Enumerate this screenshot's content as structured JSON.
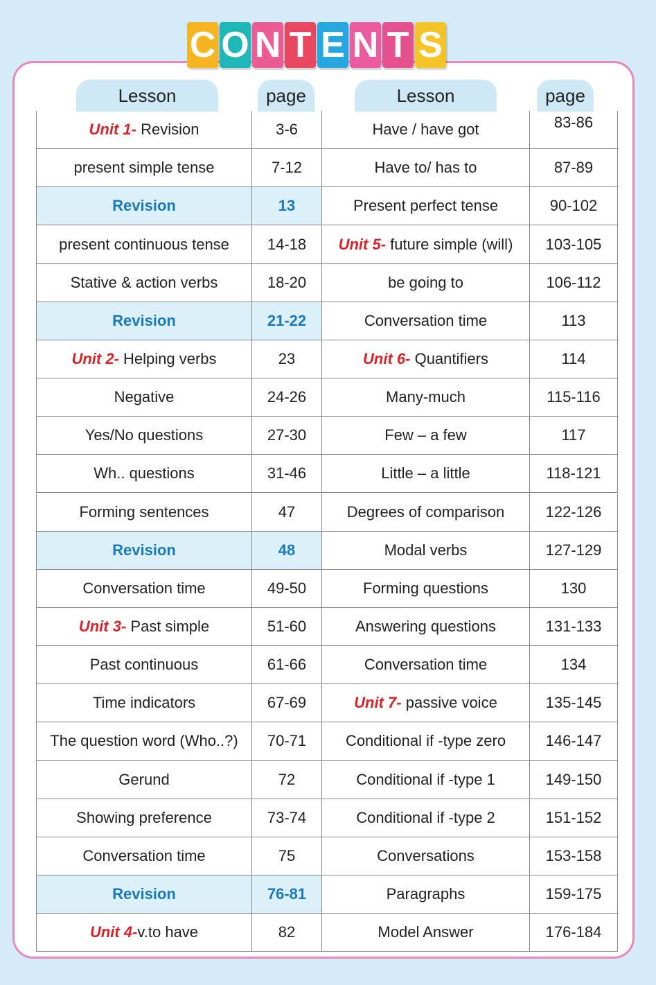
{
  "title_letters": [
    "C",
    "O",
    "N",
    "T",
    "E",
    "N",
    "T",
    "S"
  ],
  "table": {
    "headers": [
      "Lesson",
      "page",
      "Lesson",
      "page"
    ],
    "rows": [
      [
        {
          "unit": "Unit 1- ",
          "lesson": "Revision",
          "page": "3-6"
        },
        {
          "lesson": "Have / have got",
          "page": "83-86"
        }
      ],
      [
        {
          "lesson": "present simple tense",
          "page": "7-12"
        },
        {
          "lesson": "Have to/ has to",
          "page": "87-89"
        }
      ],
      [
        {
          "lesson": "Revision",
          "page": "13",
          "highlight": true
        },
        {
          "lesson": "Present perfect tense",
          "page": "90-102"
        }
      ],
      [
        {
          "lesson": "present continuous tense",
          "page": "14-18"
        },
        {
          "unit": "Unit 5- ",
          "lesson": "future simple (will)",
          "page": "103-105"
        }
      ],
      [
        {
          "lesson": "Stative & action verbs",
          "page": "18-20"
        },
        {
          "lesson": "be going to",
          "page": "106-112"
        }
      ],
      [
        {
          "lesson": "Revision",
          "page": "21-22",
          "highlight": true
        },
        {
          "lesson": "Conversation time",
          "page": "113"
        }
      ],
      [
        {
          "unit": "Unit 2- ",
          "lesson": "Helping verbs",
          "page": "23"
        },
        {
          "unit": "Unit 6- ",
          "lesson": "Quantifiers",
          "page": "114"
        }
      ],
      [
        {
          "lesson": "Negative",
          "page": "24-26"
        },
        {
          "lesson": "Many-much",
          "page": "115-116"
        }
      ],
      [
        {
          "lesson": "Yes/No questions",
          "page": "27-30"
        },
        {
          "lesson": "Few – a few",
          "page": "117"
        }
      ],
      [
        {
          "lesson": "Wh.. questions",
          "page": "31-46"
        },
        {
          "lesson": "Little – a little",
          "page": "118-121"
        }
      ],
      [
        {
          "lesson": "Forming sentences",
          "page": "47"
        },
        {
          "lesson": "Degrees of comparison",
          "page": "122-126"
        }
      ],
      [
        {
          "lesson": "Revision",
          "page": "48",
          "highlight": true
        },
        {
          "lesson": "Modal verbs",
          "page": "127-129"
        }
      ],
      [
        {
          "lesson": "Conversation time",
          "page": "49-50"
        },
        {
          "lesson": "Forming questions",
          "page": "130"
        }
      ],
      [
        {
          "unit": "Unit 3- ",
          "lesson": "Past simple",
          "page": "51-60"
        },
        {
          "lesson": "Answering questions",
          "page": "131-133"
        }
      ],
      [
        {
          "lesson": "Past continuous",
          "page": "61-66"
        },
        {
          "lesson": "Conversation time",
          "page": "134"
        }
      ],
      [
        {
          "lesson": "Time indicators",
          "page": "67-69"
        },
        {
          "unit": "Unit 7- ",
          "lesson": "passive voice",
          "page": "135-145"
        }
      ],
      [
        {
          "lesson": "The question word (Who..?)",
          "page": "70-71"
        },
        {
          "lesson": "Conditional if -type zero",
          "page": "146-147"
        }
      ],
      [
        {
          "lesson": "Gerund",
          "page": "72"
        },
        {
          "lesson": "Conditional if -type 1",
          "page": "149-150"
        }
      ],
      [
        {
          "lesson": "Showing preference",
          "page": "73-74"
        },
        {
          "lesson": "Conditional if -type 2",
          "page": "151-152"
        }
      ],
      [
        {
          "lesson": "Conversation time",
          "page": "75"
        },
        {
          "lesson": "Conversations",
          "page": "153-158"
        }
      ],
      [
        {
          "lesson": "Revision",
          "page": "76-81",
          "highlight": true
        },
        {
          "lesson": "Paragraphs",
          "page": "159-175"
        }
      ],
      [
        {
          "unit": "Unit 4-",
          "lesson": "v.to have",
          "page": "82"
        },
        {
          "lesson": "Model Answer",
          "page": "176-184"
        }
      ]
    ]
  }
}
